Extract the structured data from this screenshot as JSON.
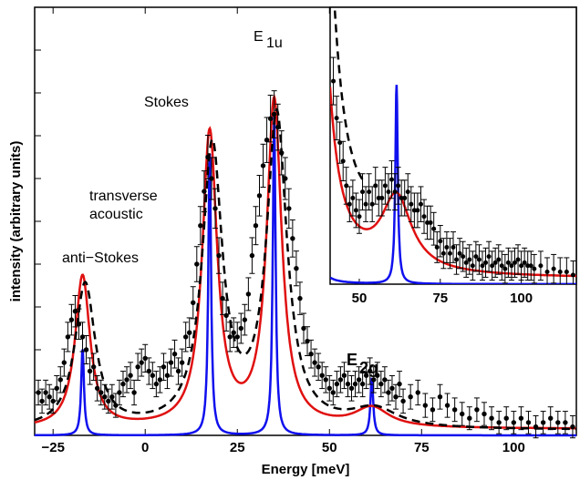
{
  "chart_data": {
    "type": "line",
    "xlabel": "Energy [meV]",
    "ylabel": "intensity (arbitrary units)",
    "xlim": [
      -30,
      117
    ],
    "ylim": [
      0,
      10
    ],
    "x_ticks": [
      -25,
      0,
      25,
      50,
      75,
      100
    ],
    "y_tick_labels_shown": false,
    "grid": false,
    "colors": {
      "data": "#000000",
      "fit": "#e01010",
      "intrinsic": "#1010ee",
      "calc": "#000000"
    },
    "annotations": {
      "anti_stokes": "anti−Stokes",
      "transverse_1": "transverse",
      "transverse_2": "acoustic",
      "stokes": "Stokes",
      "e1u_main": "E",
      "e1u_sub": "1u",
      "e2g_main": "E",
      "e2g_sub": "2g"
    },
    "peaks": [
      {
        "name": "anti-Stokes",
        "center": -17,
        "fit_height": 3.55,
        "fwhm": 3.5,
        "intrinsic_height": 2.05,
        "intrinsic_fwhm": 0.9
      },
      {
        "name": "Stokes",
        "center": 17.5,
        "fit_height": 6.85,
        "fwhm": 3.5,
        "intrinsic_height": 6.6,
        "intrinsic_fwhm": 0.9
      },
      {
        "name": "E1u",
        "center": 35,
        "fit_height": 7.6,
        "fwhm": 3.5,
        "intrinsic_height": 7.5,
        "intrinsic_fwhm": 0.9
      },
      {
        "name": "E2g",
        "center": 61.5,
        "fit_height": 0.45,
        "fwhm": 8,
        "intrinsic_height": 1.35,
        "intrinsic_fwhm": 0.9
      }
    ],
    "baseline": 0.15,
    "data_points": [
      [
        -29,
        1.0
      ],
      [
        -28,
        0.8
      ],
      [
        -27,
        1.0
      ],
      [
        -26,
        0.9
      ],
      [
        -25,
        0.8
      ],
      [
        -24,
        1.1
      ],
      [
        -23,
        1.3
      ],
      [
        -22,
        1.7
      ],
      [
        -21,
        2.3
      ],
      [
        -20,
        2.7
      ],
      [
        -19,
        2.9
      ],
      [
        -18,
        2.6
      ],
      [
        -17,
        2.3
      ],
      [
        -16,
        2.0
      ],
      [
        -15,
        1.5
      ],
      [
        -14,
        1.6
      ],
      [
        -13,
        1.1
      ],
      [
        -12,
        1.0
      ],
      [
        -11,
        0.9
      ],
      [
        -10,
        0.8
      ],
      [
        -9,
        0.9
      ],
      [
        -8,
        0.7
      ],
      [
        -7,
        1.0
      ],
      [
        -6,
        1.2
      ],
      [
        -5,
        1.3
      ],
      [
        -4,
        1.4
      ],
      [
        -3,
        1.0
      ],
      [
        -2,
        1.6
      ],
      [
        -1,
        1.7
      ],
      [
        0,
        1.8
      ],
      [
        1,
        1.5
      ],
      [
        2,
        1.4
      ],
      [
        3,
        1.2
      ],
      [
        4,
        1.3
      ],
      [
        5,
        1.6
      ],
      [
        6,
        1.4
      ],
      [
        7,
        1.7
      ],
      [
        8,
        1.9
      ],
      [
        9,
        1.5
      ],
      [
        10,
        1.7
      ],
      [
        11,
        2.3
      ],
      [
        12,
        2.4
      ],
      [
        13,
        3.1
      ],
      [
        14,
        4.0
      ],
      [
        15,
        4.9
      ],
      [
        16,
        5.7
      ],
      [
        17,
        6.5
      ],
      [
        18,
        6.0
      ],
      [
        19,
        5.3
      ],
      [
        20,
        4.2
      ],
      [
        21,
        3.2
      ],
      [
        22,
        2.8
      ],
      [
        23,
        2.3
      ],
      [
        24,
        2.4
      ],
      [
        25,
        2.3
      ],
      [
        26,
        2.5
      ],
      [
        27,
        2.7
      ],
      [
        28,
        3.3
      ],
      [
        29,
        4.2
      ],
      [
        30,
        4.9
      ],
      [
        31,
        5.6
      ],
      [
        32,
        6.3
      ],
      [
        33,
        6.9
      ],
      [
        34,
        7.4
      ],
      [
        35,
        7.5
      ],
      [
        36,
        7.2
      ],
      [
        37,
        6.6
      ],
      [
        38,
        6.0
      ],
      [
        39,
        5.3
      ],
      [
        40,
        4.6
      ],
      [
        41,
        3.9
      ],
      [
        42,
        3.2
      ],
      [
        43,
        2.5
      ],
      [
        44,
        2.2
      ],
      [
        45,
        1.9
      ],
      [
        46,
        1.7
      ],
      [
        47,
        1.6
      ],
      [
        48,
        1.4
      ],
      [
        49,
        1.3
      ],
      [
        50,
        1.1
      ],
      [
        51,
        1.0
      ],
      [
        52,
        1.2
      ],
      [
        53,
        1.3
      ],
      [
        54,
        1.4
      ],
      [
        55,
        1.2
      ],
      [
        56,
        1.1
      ],
      [
        57,
        1.2
      ],
      [
        58,
        1.3
      ],
      [
        59,
        1.2
      ],
      [
        60,
        1.4
      ],
      [
        61,
        1.5
      ],
      [
        62,
        1.3
      ],
      [
        63,
        1.4
      ],
      [
        64,
        1.2
      ],
      [
        65,
        1.3
      ],
      [
        66,
        1.0
      ],
      [
        67,
        1.1
      ],
      [
        68,
        0.9
      ],
      [
        69,
        1.2
      ],
      [
        70,
        0.8
      ],
      [
        72,
        0.9
      ],
      [
        74,
        1.0
      ],
      [
        76,
        0.7
      ],
      [
        78,
        0.6
      ],
      [
        80,
        0.9
      ],
      [
        82,
        0.7
      ],
      [
        84,
        0.6
      ],
      [
        86,
        0.5
      ],
      [
        88,
        0.4
      ],
      [
        90,
        0.6
      ],
      [
        92,
        0.5
      ],
      [
        94,
        0.4
      ],
      [
        96,
        0.3
      ],
      [
        98,
        0.4
      ],
      [
        100,
        0.3
      ],
      [
        102,
        0.4
      ],
      [
        104,
        0.3
      ],
      [
        106,
        0.2
      ],
      [
        108,
        0.3
      ],
      [
        110,
        0.4
      ],
      [
        112,
        0.3
      ],
      [
        114,
        0.3
      ],
      [
        116,
        0.2
      ]
    ],
    "inset": {
      "xlim": [
        41,
        117
      ],
      "x_ticks": [
        50,
        75,
        100
      ],
      "ylim": [
        0,
        4.5
      ],
      "data_points": [
        [
          42,
          3.3
        ],
        [
          43,
          2.7
        ],
        [
          44,
          2.3
        ],
        [
          45,
          2.0
        ],
        [
          46,
          1.6
        ],
        [
          47,
          1.3
        ],
        [
          48,
          1.4
        ],
        [
          49,
          1.2
        ],
        [
          50,
          1.1
        ],
        [
          51,
          1.5
        ],
        [
          52,
          1.3
        ],
        [
          53,
          1.5
        ],
        [
          54,
          1.3
        ],
        [
          55,
          1.6
        ],
        [
          56,
          1.4
        ],
        [
          57,
          1.4
        ],
        [
          58,
          1.6
        ],
        [
          59,
          1.5
        ],
        [
          60,
          1.7
        ],
        [
          61,
          1.5
        ],
        [
          62,
          1.6
        ],
        [
          63,
          1.4
        ],
        [
          64,
          1.4
        ],
        [
          65,
          1.5
        ],
        [
          66,
          1.3
        ],
        [
          67,
          1.2
        ],
        [
          68,
          1.2
        ],
        [
          69,
          1.3
        ],
        [
          70,
          1.1
        ],
        [
          71,
          1.0
        ],
        [
          72,
          1.0
        ],
        [
          73,
          0.9
        ],
        [
          74,
          0.6
        ],
        [
          75,
          0.7
        ],
        [
          76,
          0.5
        ],
        [
          77,
          0.6
        ],
        [
          78,
          0.5
        ],
        [
          79,
          0.6
        ],
        [
          80,
          0.4
        ],
        [
          81,
          0.5
        ],
        [
          82,
          0.45
        ],
        [
          83,
          0.35
        ],
        [
          84,
          0.4
        ],
        [
          85,
          0.3
        ],
        [
          86,
          0.45
        ],
        [
          87,
          0.4
        ],
        [
          88,
          0.3
        ],
        [
          89,
          0.35
        ],
        [
          90,
          0.45
        ],
        [
          91,
          0.3
        ],
        [
          92,
          0.35
        ],
        [
          93,
          0.4
        ],
        [
          94,
          0.3
        ],
        [
          95,
          0.25
        ],
        [
          96,
          0.35
        ],
        [
          97,
          0.3
        ],
        [
          98,
          0.35
        ],
        [
          99,
          0.4
        ],
        [
          100,
          0.3
        ],
        [
          101,
          0.35
        ],
        [
          102,
          0.3
        ],
        [
          103,
          0.3
        ],
        [
          104,
          0.25
        ],
        [
          106,
          0.3
        ],
        [
          108,
          0.2
        ],
        [
          110,
          0.25
        ],
        [
          112,
          0.2
        ],
        [
          114,
          0.2
        ],
        [
          116,
          0.15
        ]
      ]
    }
  }
}
